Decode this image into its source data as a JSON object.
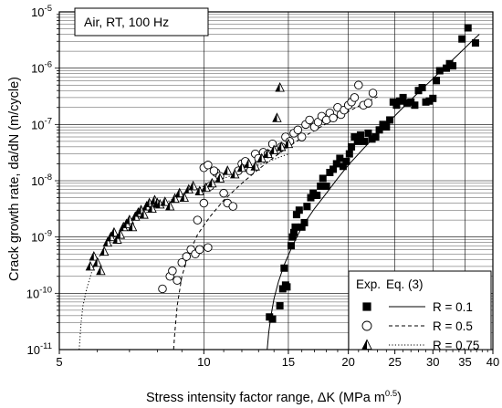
{
  "chart_data": {
    "type": "scatter",
    "xscale": "log",
    "yscale": "log",
    "xlim": [
      5,
      40
    ],
    "ylim": [
      1e-11,
      1e-05
    ],
    "grid": true,
    "xlabel": "Stress intensity factor range, ΔK (MPa m",
    "xlabel_sup": "0.5",
    "xlabel_end": ")",
    "ylabel": "Crack growth rate, da/dN (m/cycle)",
    "x_ticks": [
      {
        "value": 5,
        "label": "5"
      },
      {
        "value": 10,
        "label": "10"
      },
      {
        "value": 15,
        "label": "15"
      },
      {
        "value": 20,
        "label": "20"
      },
      {
        "value": 25,
        "label": "25"
      },
      {
        "value": 30,
        "label": "30"
      },
      {
        "value": 35,
        "label": "35"
      },
      {
        "value": 40,
        "label": "40"
      }
    ],
    "y_ticks": [
      {
        "value": 1e-11,
        "base": "10",
        "exp": "-11"
      },
      {
        "value": 1e-10,
        "base": "10",
        "exp": "-10"
      },
      {
        "value": 1e-09,
        "base": "10",
        "exp": "-9"
      },
      {
        "value": 1e-08,
        "base": "10",
        "exp": "-8"
      },
      {
        "value": 1e-07,
        "base": "10",
        "exp": "-7"
      },
      {
        "value": 1e-06,
        "base": "10",
        "exp": "-6"
      },
      {
        "value": 1e-05,
        "base": "10",
        "exp": "-5"
      }
    ],
    "annotation": "Air, RT, 100 Hz",
    "legend": {
      "position": "bottom-right",
      "exp_header": "Exp.",
      "eq_header": "Eq. (3)",
      "entries": [
        {
          "label": "R = 0.1",
          "marker": "square",
          "line": "solid"
        },
        {
          "label": "R = 0.5",
          "marker": "circle",
          "line": "dashed"
        },
        {
          "label": "R = 0.75",
          "marker": "triangle",
          "line": "dotted"
        }
      ]
    },
    "series": [
      {
        "name": "R = 0.1",
        "marker": "square",
        "points": [
          [
            13.7,
            3.8e-11
          ],
          [
            13.9,
            3.5e-11
          ],
          [
            14.4,
            6e-11
          ],
          [
            14.6,
            1.2e-10
          ],
          [
            14.8,
            1.4e-10
          ],
          [
            14.7,
            2.8e-10
          ],
          [
            14.9,
            1.3e-10
          ],
          [
            15.2,
            7e-10
          ],
          [
            15.3,
            1e-09
          ],
          [
            15.4,
            1.2e-09
          ],
          [
            15.5,
            1.5e-09
          ],
          [
            15.6,
            2.5e-09
          ],
          [
            15.8,
            3e-09
          ],
          [
            16.0,
            1.5e-09
          ],
          [
            16.2,
            1.8e-09
          ],
          [
            16.4,
            3.5e-09
          ],
          [
            16.7,
            5e-09
          ],
          [
            16.9,
            6e-09
          ],
          [
            17.2,
            5.5e-09
          ],
          [
            17.5,
            8e-09
          ],
          [
            17.7,
            1.1e-08
          ],
          [
            18.0,
            8e-09
          ],
          [
            18.3,
            1.4e-08
          ],
          [
            18.6,
            1.6e-08
          ],
          [
            18.9,
            2e-08
          ],
          [
            19.2,
            2.5e-08
          ],
          [
            19.5,
            1.8e-08
          ],
          [
            19.8,
            2.2e-08
          ],
          [
            20.1,
            3e-08
          ],
          [
            20.3,
            4e-08
          ],
          [
            20.6,
            6e-08
          ],
          [
            20.9,
            5e-08
          ],
          [
            21.2,
            6.5e-08
          ],
          [
            21.6,
            5e-08
          ],
          [
            22.0,
            7e-08
          ],
          [
            22.4,
            5.5e-08
          ],
          [
            22.8,
            6e-08
          ],
          [
            23.2,
            8e-08
          ],
          [
            23.6,
            1e-07
          ],
          [
            24.0,
            9e-08
          ],
          [
            24.4,
            1.2e-07
          ],
          [
            24.8,
            2.5e-07
          ],
          [
            25.2,
            2.2e-07
          ],
          [
            25.6,
            2.6e-07
          ],
          [
            26.0,
            3e-07
          ],
          [
            26.5,
            2.4e-07
          ],
          [
            27.0,
            2.5e-07
          ],
          [
            27.5,
            2.2e-07
          ],
          [
            28.0,
            4e-07
          ],
          [
            28.5,
            4.5e-07
          ],
          [
            29.0,
            2.5e-07
          ],
          [
            29.5,
            2.6e-07
          ],
          [
            30.0,
            2.9e-07
          ],
          [
            30.5,
            6e-07
          ],
          [
            31.0,
            9e-07
          ],
          [
            32.0,
            1e-06
          ],
          [
            32.5,
            1.2e-06
          ],
          [
            33.0,
            1.1e-06
          ],
          [
            34.5,
            3.3e-06
          ],
          [
            35.5,
            5.2e-06
          ],
          [
            36.8,
            2.8e-06
          ]
        ]
      },
      {
        "name": "R = 0.5",
        "marker": "circle",
        "points": [
          [
            8.2,
            1.2e-10
          ],
          [
            8.5,
            2e-10
          ],
          [
            8.6,
            2.5e-10
          ],
          [
            8.8,
            1.7e-10
          ],
          [
            9.0,
            3.5e-10
          ],
          [
            9.2,
            4.5e-10
          ],
          [
            9.4,
            6e-10
          ],
          [
            9.6,
            5e-10
          ],
          [
            9.8,
            6e-10
          ],
          [
            10.2,
            6.5e-10
          ],
          [
            9.7,
            2e-09
          ],
          [
            10.0,
            4e-09
          ],
          [
            10.3,
            8e-09
          ],
          [
            10.6,
            1.4e-08
          ],
          [
            10.0,
            1.7e-08
          ],
          [
            10.2,
            1.9e-08
          ],
          [
            10.5,
            1.5e-08
          ],
          [
            10.8,
            1.2e-08
          ],
          [
            11.0,
            6e-09
          ],
          [
            11.2,
            4e-09
          ],
          [
            11.5,
            3.5e-09
          ],
          [
            11.8,
            1.5e-08
          ],
          [
            12.0,
            2e-08
          ],
          [
            12.2,
            2.2e-08
          ],
          [
            12.5,
            1.5e-08
          ],
          [
            12.8,
            3e-08
          ],
          [
            13.0,
            2.5e-08
          ],
          [
            13.3,
            3.2e-08
          ],
          [
            13.6,
            3e-08
          ],
          [
            13.9,
            4.5e-08
          ],
          [
            14.2,
            3.5e-08
          ],
          [
            14.5,
            4e-08
          ],
          [
            14.8,
            6e-08
          ],
          [
            15.1,
            5e-08
          ],
          [
            15.4,
            7e-08
          ],
          [
            15.7,
            8e-08
          ],
          [
            16.0,
            6e-08
          ],
          [
            16.3,
            1e-07
          ],
          [
            16.6,
            1.2e-07
          ],
          [
            17.0,
            9e-08
          ],
          [
            17.3,
            1.1e-07
          ],
          [
            17.6,
            1.4e-07
          ],
          [
            18.0,
            1.2e-07
          ],
          [
            18.3,
            1.6e-07
          ],
          [
            18.6,
            1.3e-07
          ],
          [
            19.0,
            2e-07
          ],
          [
            19.3,
            1.5e-07
          ],
          [
            19.6,
            1.8e-07
          ],
          [
            20.0,
            2.2e-07
          ],
          [
            20.3,
            2.5e-07
          ],
          [
            20.6,
            3e-07
          ],
          [
            21.0,
            5e-07
          ],
          [
            21.5,
            2.2e-07
          ],
          [
            22.0,
            2.4e-07
          ],
          [
            22.5,
            3.6e-07
          ]
        ]
      },
      {
        "name": "R = 0.75",
        "marker": "triangle",
        "points": [
          [
            5.8,
            3e-10
          ],
          [
            5.9,
            4.5e-10
          ],
          [
            6.0,
            3.5e-10
          ],
          [
            6.1,
            2.5e-10
          ],
          [
            6.2,
            5.5e-10
          ],
          [
            6.3,
            8e-10
          ],
          [
            6.4,
            1e-09
          ],
          [
            6.5,
            1.2e-09
          ],
          [
            6.6,
            9e-10
          ],
          [
            6.7,
            1.1e-09
          ],
          [
            6.8,
            1.5e-09
          ],
          [
            6.9,
            1.7e-09
          ],
          [
            7.0,
            2e-09
          ],
          [
            7.1,
            1.5e-09
          ],
          [
            7.2,
            2.3e-09
          ],
          [
            7.3,
            2.7e-09
          ],
          [
            7.4,
            3e-09
          ],
          [
            7.5,
            2.5e-09
          ],
          [
            7.6,
            3.5e-09
          ],
          [
            7.7,
            4e-09
          ],
          [
            7.8,
            3.2e-09
          ],
          [
            7.9,
            4.5e-09
          ],
          [
            8.0,
            4e-09
          ],
          [
            8.1,
            3.8e-09
          ],
          [
            8.3,
            4.2e-09
          ],
          [
            8.5,
            3.5e-09
          ],
          [
            8.7,
            4.8e-09
          ],
          [
            8.9,
            6e-09
          ],
          [
            9.1,
            5e-09
          ],
          [
            9.3,
            7e-09
          ],
          [
            9.5,
            8e-09
          ],
          [
            9.8,
            6.5e-09
          ],
          [
            10.1,
            7.5e-09
          ],
          [
            10.4,
            9e-09
          ],
          [
            10.8,
            1.1e-08
          ],
          [
            11.2,
            1.5e-08
          ],
          [
            11.6,
            1.3e-08
          ],
          [
            12.0,
            1.7e-08
          ],
          [
            12.4,
            2e-08
          ],
          [
            12.8,
            1.8e-08
          ],
          [
            13.2,
            2.5e-08
          ],
          [
            13.6,
            3e-08
          ],
          [
            14.0,
            3.5e-08
          ],
          [
            14.5,
            4e-08
          ],
          [
            15.0,
            4.5e-08
          ],
          [
            14.2,
            1.3e-07
          ],
          [
            14.4,
            4.5e-07
          ]
        ]
      }
    ],
    "fits": [
      {
        "name": "R = 0.1",
        "line": "solid",
        "points": [
          [
            13.55,
            1e-11
          ],
          [
            13.65,
            2e-11
          ],
          [
            13.8,
            4e-11
          ],
          [
            14.0,
            8e-11
          ],
          [
            14.3,
            1.6e-10
          ],
          [
            14.7,
            3.2e-10
          ],
          [
            15.3,
            7e-10
          ],
          [
            16.0,
            1.5e-09
          ],
          [
            17.0,
            3.2e-09
          ],
          [
            18.0,
            6e-09
          ],
          [
            19.0,
            1.1e-08
          ],
          [
            20.0,
            1.9e-08
          ],
          [
            22.0,
            4.6e-08
          ],
          [
            24.0,
            1e-07
          ],
          [
            26.0,
            2e-07
          ],
          [
            28.0,
            3.7e-07
          ],
          [
            30.0,
            6.5e-07
          ],
          [
            32.0,
            1.1e-06
          ],
          [
            34.0,
            1.8e-06
          ],
          [
            36.0,
            2.9e-06
          ],
          [
            37.5,
            4e-06
          ]
        ]
      },
      {
        "name": "R = 0.5",
        "line": "dashed",
        "points": [
          [
            8.65,
            1e-11
          ],
          [
            8.7,
            2e-11
          ],
          [
            8.8,
            6e-11
          ],
          [
            9.0,
            2e-10
          ],
          [
            9.3,
            5e-10
          ],
          [
            9.7,
            1.1e-09
          ],
          [
            10.3,
            2.3e-09
          ],
          [
            11.0,
            4.5e-09
          ],
          [
            12.0,
            9e-09
          ],
          [
            13.0,
            1.6e-08
          ],
          [
            14.0,
            2.6e-08
          ],
          [
            15.0,
            4e-08
          ],
          [
            16.0,
            5.8e-08
          ],
          [
            17.5,
            9e-08
          ],
          [
            19.0,
            1.35e-07
          ],
          [
            20.5,
            1.9e-07
          ],
          [
            22.0,
            2.6e-07
          ],
          [
            23.0,
            3.1e-07
          ]
        ]
      },
      {
        "name": "R = 0.75",
        "line": "dotted",
        "points": [
          [
            5.5,
            1e-11
          ],
          [
            5.55,
            3e-11
          ],
          [
            5.6,
            6e-11
          ],
          [
            5.7,
            1.2e-10
          ],
          [
            5.85,
            2.5e-10
          ],
          [
            6.0,
            4e-10
          ],
          [
            6.3,
            7.5e-10
          ],
          [
            6.7,
            1.3e-09
          ],
          [
            7.2,
            2.1e-09
          ],
          [
            8.0,
            3.5e-09
          ],
          [
            9.0,
            5.6e-09
          ],
          [
            10.0,
            8e-09
          ],
          [
            11.0,
            1.1e-08
          ],
          [
            12.0,
            1.45e-08
          ],
          [
            13.0,
            1.9e-08
          ],
          [
            14.0,
            2.4e-08
          ],
          [
            15.0,
            3e-08
          ]
        ]
      }
    ]
  }
}
